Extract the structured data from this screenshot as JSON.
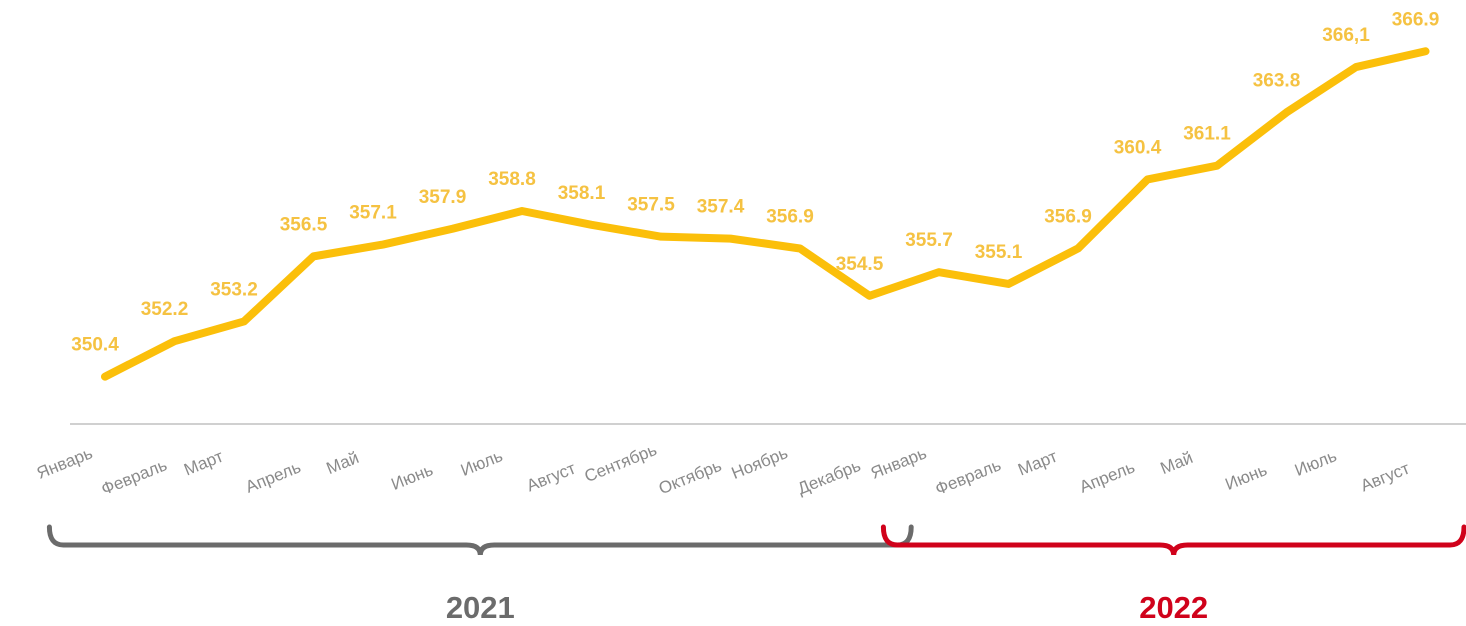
{
  "chart_data": {
    "type": "line",
    "categories": [
      "Январь",
      "Февраль",
      "Март",
      "Апрель",
      "Май",
      "Июнь",
      "Июль",
      "Август",
      "Сентябрь",
      "Октябрь",
      "Ноябрь",
      "Декабрь",
      "Январь",
      "Февраль",
      "Март",
      "Апрель",
      "Май",
      "Июнь",
      "Июль",
      "Август"
    ],
    "series": [
      {
        "name": "value",
        "color": "#fbbf0a",
        "values": [
          350.4,
          352.2,
          353.2,
          356.5,
          357.1,
          357.9,
          358.8,
          358.1,
          357.5,
          357.4,
          356.9,
          354.5,
          355.7,
          355.1,
          356.9,
          360.4,
          361.1,
          363.8,
          366.1,
          366.9
        ],
        "value_labels": [
          "350.4",
          "352.2",
          "353.2",
          "356.5",
          "357.1",
          "357.9",
          "358.8",
          "358.1",
          "357.5",
          "357.4",
          "356.9",
          "354.5",
          "355.7",
          "355.1",
          "356.9",
          "360.4",
          "361.1",
          "363.8",
          "366,1",
          "366.9"
        ]
      }
    ],
    "ylim": [
      348,
      369.5
    ],
    "groups": [
      {
        "label": "2021",
        "color": "#6b6b6b",
        "span": [
          0,
          11
        ]
      },
      {
        "label": "2022",
        "color": "#d0021b",
        "span": [
          12,
          19
        ]
      }
    ]
  }
}
